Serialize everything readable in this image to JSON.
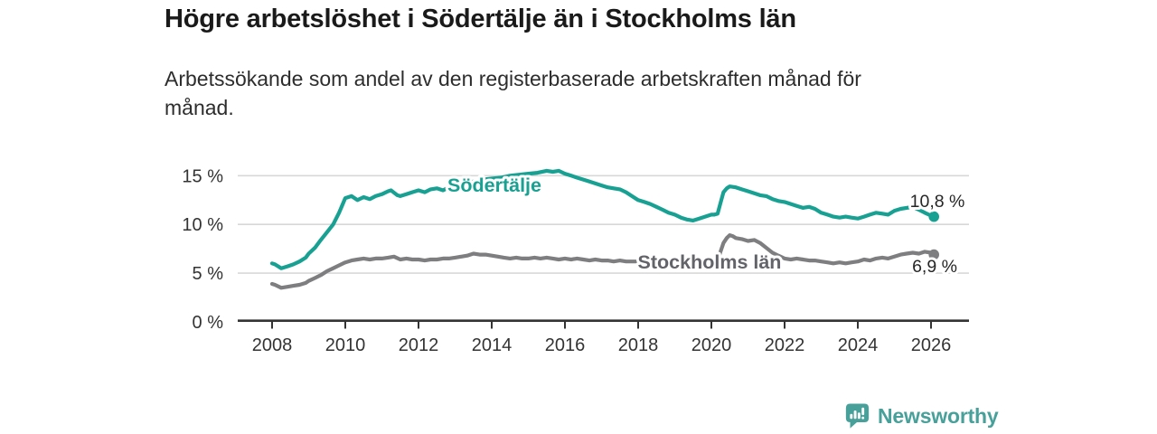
{
  "header": {
    "title": "Högre arbetslöshet i Södertälje än i Stockholms län",
    "subtitle": "Arbetssökande som andel av den registerbaserade arbetskraften månad för\nmånad."
  },
  "footer": {
    "brand": "Newsworthy",
    "brand_color": "#47a099"
  },
  "chart_data": {
    "type": "line",
    "title": "Högre arbetslöshet i Södertälje än i Stockholms län",
    "xlabel": "",
    "ylabel": "",
    "unit": "%",
    "grid": "horizontal",
    "xlim": [
      2007.1,
      2027.0
    ],
    "ylim": [
      0,
      17.3
    ],
    "x_ticks": [
      2008,
      2010,
      2012,
      2014,
      2016,
      2018,
      2020,
      2022,
      2024,
      2026
    ],
    "y_ticks": [
      {
        "value": 0,
        "label": "0 %"
      },
      {
        "value": 5,
        "label": "5 %"
      },
      {
        "value": 10,
        "label": "10 %"
      },
      {
        "value": 15,
        "label": "15 %"
      }
    ],
    "series": [
      {
        "id": "sodertalje",
        "name": "Södertälje",
        "color": "#18a192",
        "label_color": "#18a192",
        "end_label": "10,8 %",
        "end_value": 10.8,
        "points": [
          [
            2008.0,
            6.0
          ],
          [
            2008.08,
            5.9
          ],
          [
            2008.25,
            5.5
          ],
          [
            2008.42,
            5.7
          ],
          [
            2008.58,
            5.9
          ],
          [
            2008.75,
            6.2
          ],
          [
            2008.92,
            6.6
          ],
          [
            2009.0,
            7.0
          ],
          [
            2009.17,
            7.6
          ],
          [
            2009.33,
            8.4
          ],
          [
            2009.5,
            9.2
          ],
          [
            2009.67,
            10.0
          ],
          [
            2009.83,
            11.2
          ],
          [
            2010.0,
            12.7
          ],
          [
            2010.17,
            12.9
          ],
          [
            2010.33,
            12.5
          ],
          [
            2010.5,
            12.8
          ],
          [
            2010.67,
            12.6
          ],
          [
            2010.83,
            12.9
          ],
          [
            2011.0,
            13.1
          ],
          [
            2011.17,
            13.4
          ],
          [
            2011.25,
            13.5
          ],
          [
            2011.42,
            13.0
          ],
          [
            2011.5,
            12.9
          ],
          [
            2011.67,
            13.1
          ],
          [
            2011.83,
            13.3
          ],
          [
            2012.0,
            13.5
          ],
          [
            2012.17,
            13.3
          ],
          [
            2012.33,
            13.6
          ],
          [
            2012.5,
            13.7
          ],
          [
            2012.67,
            13.5
          ],
          [
            2012.83,
            13.8
          ],
          [
            2013.0,
            14.0
          ],
          [
            2013.25,
            14.2
          ],
          [
            2013.5,
            14.4
          ],
          [
            2013.75,
            14.6
          ],
          [
            2014.0,
            14.7
          ],
          [
            2014.25,
            14.8
          ],
          [
            2014.5,
            15.0
          ],
          [
            2014.75,
            15.1
          ],
          [
            2015.0,
            15.2
          ],
          [
            2015.25,
            15.3
          ],
          [
            2015.5,
            15.5
          ],
          [
            2015.67,
            15.4
          ],
          [
            2015.83,
            15.5
          ],
          [
            2016.0,
            15.2
          ],
          [
            2016.17,
            15.0
          ],
          [
            2016.33,
            14.8
          ],
          [
            2016.5,
            14.6
          ],
          [
            2016.67,
            14.4
          ],
          [
            2016.83,
            14.2
          ],
          [
            2017.0,
            14.0
          ],
          [
            2017.17,
            13.8
          ],
          [
            2017.33,
            13.7
          ],
          [
            2017.5,
            13.6
          ],
          [
            2017.67,
            13.3
          ],
          [
            2017.83,
            12.9
          ],
          [
            2018.0,
            12.5
          ],
          [
            2018.17,
            12.3
          ],
          [
            2018.33,
            12.1
          ],
          [
            2018.5,
            11.8
          ],
          [
            2018.67,
            11.5
          ],
          [
            2018.83,
            11.2
          ],
          [
            2019.0,
            11.0
          ],
          [
            2019.17,
            10.7
          ],
          [
            2019.33,
            10.5
          ],
          [
            2019.5,
            10.4
          ],
          [
            2019.67,
            10.6
          ],
          [
            2019.83,
            10.8
          ],
          [
            2020.0,
            11.0
          ],
          [
            2020.08,
            11.0
          ],
          [
            2020.17,
            11.1
          ],
          [
            2020.25,
            12.2
          ],
          [
            2020.33,
            13.3
          ],
          [
            2020.42,
            13.7
          ],
          [
            2020.5,
            13.9
          ],
          [
            2020.67,
            13.8
          ],
          [
            2020.83,
            13.6
          ],
          [
            2021.0,
            13.4
          ],
          [
            2021.17,
            13.2
          ],
          [
            2021.33,
            13.0
          ],
          [
            2021.5,
            12.9
          ],
          [
            2021.67,
            12.6
          ],
          [
            2021.83,
            12.4
          ],
          [
            2022.0,
            12.3
          ],
          [
            2022.17,
            12.1
          ],
          [
            2022.33,
            11.9
          ],
          [
            2022.5,
            11.7
          ],
          [
            2022.67,
            11.8
          ],
          [
            2022.83,
            11.6
          ],
          [
            2023.0,
            11.2
          ],
          [
            2023.17,
            11.0
          ],
          [
            2023.33,
            10.8
          ],
          [
            2023.5,
            10.7
          ],
          [
            2023.67,
            10.8
          ],
          [
            2023.83,
            10.7
          ],
          [
            2024.0,
            10.6
          ],
          [
            2024.17,
            10.8
          ],
          [
            2024.33,
            11.0
          ],
          [
            2024.5,
            11.2
          ],
          [
            2024.67,
            11.1
          ],
          [
            2024.83,
            11.0
          ],
          [
            2025.0,
            11.4
          ],
          [
            2025.17,
            11.6
          ],
          [
            2025.33,
            11.7
          ],
          [
            2025.5,
            11.8
          ],
          [
            2025.67,
            11.5
          ],
          [
            2025.83,
            11.2
          ],
          [
            2026.0,
            10.9
          ],
          [
            2026.08,
            10.8
          ]
        ]
      },
      {
        "id": "stockholms-lan",
        "name": "Stockholms län",
        "color": "#7e7e81",
        "label_color": "#63636a",
        "end_label": "6,9 %",
        "end_value": 6.9,
        "points": [
          [
            2008.0,
            3.9
          ],
          [
            2008.08,
            3.8
          ],
          [
            2008.25,
            3.5
          ],
          [
            2008.42,
            3.6
          ],
          [
            2008.58,
            3.7
          ],
          [
            2008.75,
            3.8
          ],
          [
            2008.92,
            4.0
          ],
          [
            2009.0,
            4.2
          ],
          [
            2009.17,
            4.5
          ],
          [
            2009.33,
            4.8
          ],
          [
            2009.5,
            5.2
          ],
          [
            2009.67,
            5.5
          ],
          [
            2009.83,
            5.8
          ],
          [
            2010.0,
            6.1
          ],
          [
            2010.17,
            6.3
          ],
          [
            2010.33,
            6.4
          ],
          [
            2010.5,
            6.5
          ],
          [
            2010.67,
            6.4
          ],
          [
            2010.83,
            6.5
          ],
          [
            2011.0,
            6.5
          ],
          [
            2011.17,
            6.6
          ],
          [
            2011.33,
            6.7
          ],
          [
            2011.5,
            6.4
          ],
          [
            2011.67,
            6.5
          ],
          [
            2011.83,
            6.4
          ],
          [
            2012.0,
            6.4
          ],
          [
            2012.17,
            6.3
          ],
          [
            2012.33,
            6.4
          ],
          [
            2012.5,
            6.4
          ],
          [
            2012.67,
            6.5
          ],
          [
            2012.83,
            6.5
          ],
          [
            2013.0,
            6.6
          ],
          [
            2013.17,
            6.7
          ],
          [
            2013.33,
            6.8
          ],
          [
            2013.5,
            7.0
          ],
          [
            2013.67,
            6.9
          ],
          [
            2013.83,
            6.9
          ],
          [
            2014.0,
            6.8
          ],
          [
            2014.17,
            6.7
          ],
          [
            2014.33,
            6.6
          ],
          [
            2014.5,
            6.5
          ],
          [
            2014.67,
            6.6
          ],
          [
            2014.83,
            6.5
          ],
          [
            2015.0,
            6.5
          ],
          [
            2015.17,
            6.6
          ],
          [
            2015.33,
            6.5
          ],
          [
            2015.5,
            6.6
          ],
          [
            2015.67,
            6.5
          ],
          [
            2015.83,
            6.4
          ],
          [
            2016.0,
            6.5
          ],
          [
            2016.17,
            6.4
          ],
          [
            2016.33,
            6.5
          ],
          [
            2016.5,
            6.4
          ],
          [
            2016.67,
            6.3
          ],
          [
            2016.83,
            6.4
          ],
          [
            2017.0,
            6.3
          ],
          [
            2017.17,
            6.3
          ],
          [
            2017.33,
            6.2
          ],
          [
            2017.5,
            6.3
          ],
          [
            2017.67,
            6.2
          ],
          [
            2017.83,
            6.2
          ],
          [
            2018.0,
            6.2
          ],
          [
            2018.17,
            6.1
          ],
          [
            2018.33,
            6.0
          ],
          [
            2018.5,
            6.1
          ],
          [
            2018.67,
            6.0
          ],
          [
            2018.83,
            6.1
          ],
          [
            2019.0,
            6.1
          ],
          [
            2019.17,
            6.0
          ],
          [
            2019.33,
            5.9
          ],
          [
            2019.5,
            6.0
          ],
          [
            2019.67,
            6.0
          ],
          [
            2019.83,
            6.1
          ],
          [
            2020.0,
            6.1
          ],
          [
            2020.08,
            6.1
          ],
          [
            2020.17,
            6.3
          ],
          [
            2020.25,
            7.2
          ],
          [
            2020.33,
            8.1
          ],
          [
            2020.42,
            8.6
          ],
          [
            2020.5,
            8.9
          ],
          [
            2020.58,
            8.8
          ],
          [
            2020.67,
            8.6
          ],
          [
            2020.83,
            8.5
          ],
          [
            2021.0,
            8.3
          ],
          [
            2021.17,
            8.4
          ],
          [
            2021.33,
            8.1
          ],
          [
            2021.5,
            7.6
          ],
          [
            2021.67,
            7.1
          ],
          [
            2021.83,
            6.8
          ],
          [
            2022.0,
            6.5
          ],
          [
            2022.17,
            6.4
          ],
          [
            2022.33,
            6.5
          ],
          [
            2022.5,
            6.4
          ],
          [
            2022.67,
            6.3
          ],
          [
            2022.83,
            6.3
          ],
          [
            2023.0,
            6.2
          ],
          [
            2023.17,
            6.1
          ],
          [
            2023.33,
            6.0
          ],
          [
            2023.5,
            6.1
          ],
          [
            2023.67,
            6.0
          ],
          [
            2023.83,
            6.1
          ],
          [
            2024.0,
            6.2
          ],
          [
            2024.17,
            6.4
          ],
          [
            2024.33,
            6.3
          ],
          [
            2024.5,
            6.5
          ],
          [
            2024.67,
            6.6
          ],
          [
            2024.83,
            6.5
          ],
          [
            2025.0,
            6.7
          ],
          [
            2025.17,
            6.9
          ],
          [
            2025.33,
            7.0
          ],
          [
            2025.5,
            7.1
          ],
          [
            2025.67,
            7.0
          ],
          [
            2025.83,
            7.2
          ],
          [
            2026.0,
            7.1
          ],
          [
            2026.08,
            6.9
          ]
        ]
      }
    ]
  }
}
